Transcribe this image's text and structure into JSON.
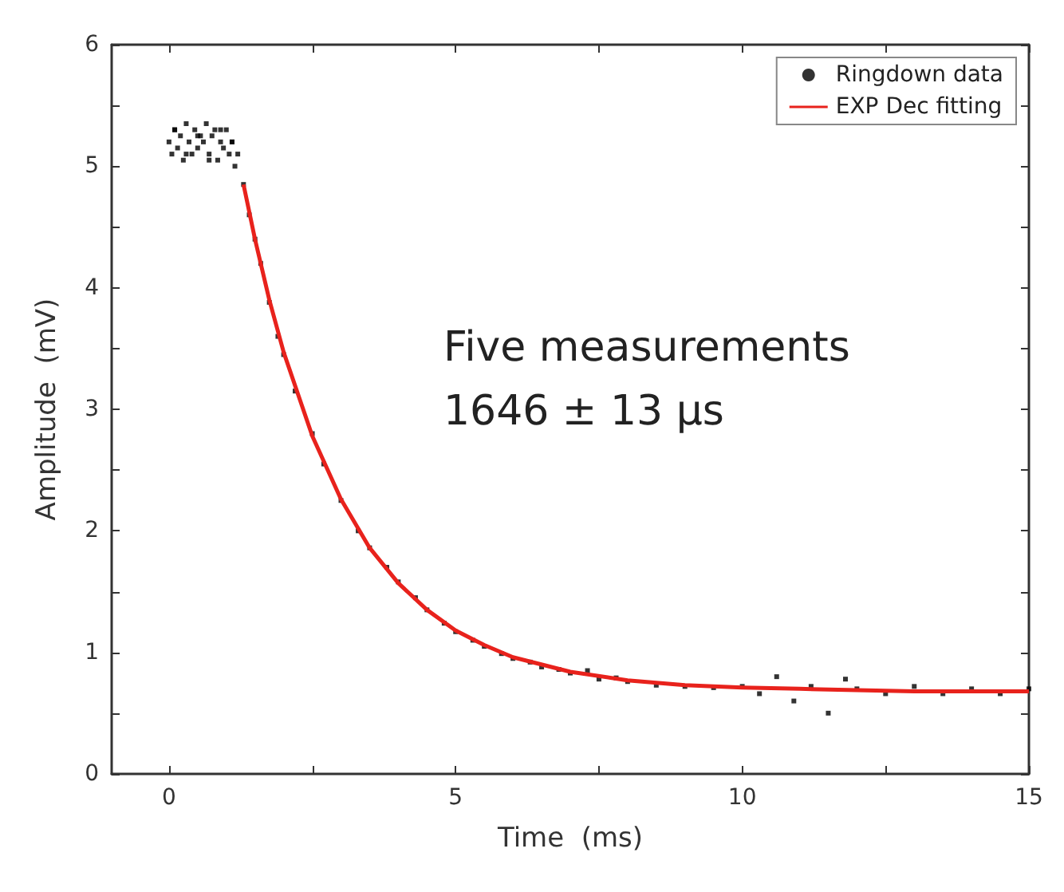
{
  "chart_data": {
    "type": "scatter",
    "xlabel": "Time  (ms)",
    "ylabel": "Amplitude  (mV)",
    "xlim": [
      -1,
      15
    ],
    "xticks": [
      0,
      {
        "value": 2.5,
        "label": null
      },
      5,
      {
        "value": 7.5,
        "label": null
      },
      10,
      {
        "value": 12.5,
        "label": null
      },
      15
    ],
    "ylim": [
      0,
      6
    ],
    "yticks": [
      0,
      {
        "value": 0.5,
        "label": null
      },
      1,
      {
        "value": 1.5,
        "label": null
      },
      2,
      {
        "value": 2.5,
        "label": null
      },
      3,
      {
        "value": 3.5,
        "label": null
      },
      4,
      {
        "value": 4.5,
        "label": null
      },
      5,
      {
        "value": 5.5,
        "label": null
      },
      6
    ],
    "grid": false,
    "legend": "top right",
    "marker": "square",
    "annotations": [
      "Five measurements\n1646 ± 13 μs"
    ],
    "series": [
      {
        "name": "Ringdown data",
        "color": "#000000",
        "x": [
          0,
          0.05,
          0.1,
          0.15,
          0.2,
          0.25,
          0.3,
          0.35,
          0.4,
          0.45,
          0.5,
          0.55,
          0.6,
          0.65,
          0.7,
          0.75,
          0.8,
          0.85,
          0.9,
          0.95,
          1.0,
          1.05,
          1.1,
          1.15,
          1.2,
          0.1,
          0.3,
          0.5,
          0.7,
          0.9,
          1.1,
          1.3,
          1.4,
          1.5,
          1.6,
          1.75,
          1.9,
          2.0,
          2.2,
          2.5,
          2.7,
          3.0,
          3.3,
          3.5,
          3.8,
          4.0,
          4.3,
          4.5,
          4.8,
          5.0,
          5.3,
          5.5,
          5.8,
          6.0,
          6.3,
          6.5,
          6.8,
          7.0,
          7.3,
          7.5,
          7.8,
          8.0,
          8.5,
          9.0,
          9.5,
          10.0,
          10.3,
          10.6,
          10.9,
          11.2,
          11.5,
          11.8,
          12.0,
          12.5,
          13.0,
          13.5,
          14.0,
          14.5,
          15.0
        ],
        "values": [
          5.2,
          5.1,
          5.3,
          5.15,
          5.25,
          5.05,
          5.35,
          5.2,
          5.1,
          5.3,
          5.15,
          5.25,
          5.2,
          5.35,
          5.1,
          5.25,
          5.3,
          5.05,
          5.2,
          5.15,
          5.3,
          5.1,
          5.2,
          5.0,
          5.1,
          5.3,
          5.1,
          5.25,
          5.05,
          5.3,
          5.2,
          4.85,
          4.6,
          4.4,
          4.2,
          3.88,
          3.6,
          3.45,
          3.15,
          2.8,
          2.55,
          2.25,
          2.0,
          1.86,
          1.7,
          1.58,
          1.45,
          1.35,
          1.24,
          1.17,
          1.1,
          1.05,
          0.99,
          0.95,
          0.92,
          0.88,
          0.86,
          0.83,
          0.85,
          0.78,
          0.79,
          0.76,
          0.73,
          0.72,
          0.71,
          0.72,
          0.66,
          0.8,
          0.6,
          0.72,
          0.5,
          0.78,
          0.7,
          0.66,
          0.72,
          0.66,
          0.7,
          0.66,
          0.7
        ]
      },
      {
        "name": "EXP Dec fitting",
        "type": "line",
        "color": "#e8221c",
        "marker": "none",
        "x": [
          1.3,
          1.5,
          1.75,
          2.0,
          2.5,
          3.0,
          3.5,
          4.0,
          4.5,
          5.0,
          5.5,
          6.0,
          7.0,
          8.0,
          9.0,
          10.0,
          11.0,
          12.0,
          13.0,
          14.0,
          15.0
        ],
        "values": [
          4.85,
          4.4,
          3.9,
          3.47,
          2.78,
          2.26,
          1.86,
          1.57,
          1.35,
          1.18,
          1.06,
          0.96,
          0.84,
          0.77,
          0.73,
          0.71,
          0.7,
          0.69,
          0.68,
          0.68,
          0.68
        ]
      }
    ]
  }
}
